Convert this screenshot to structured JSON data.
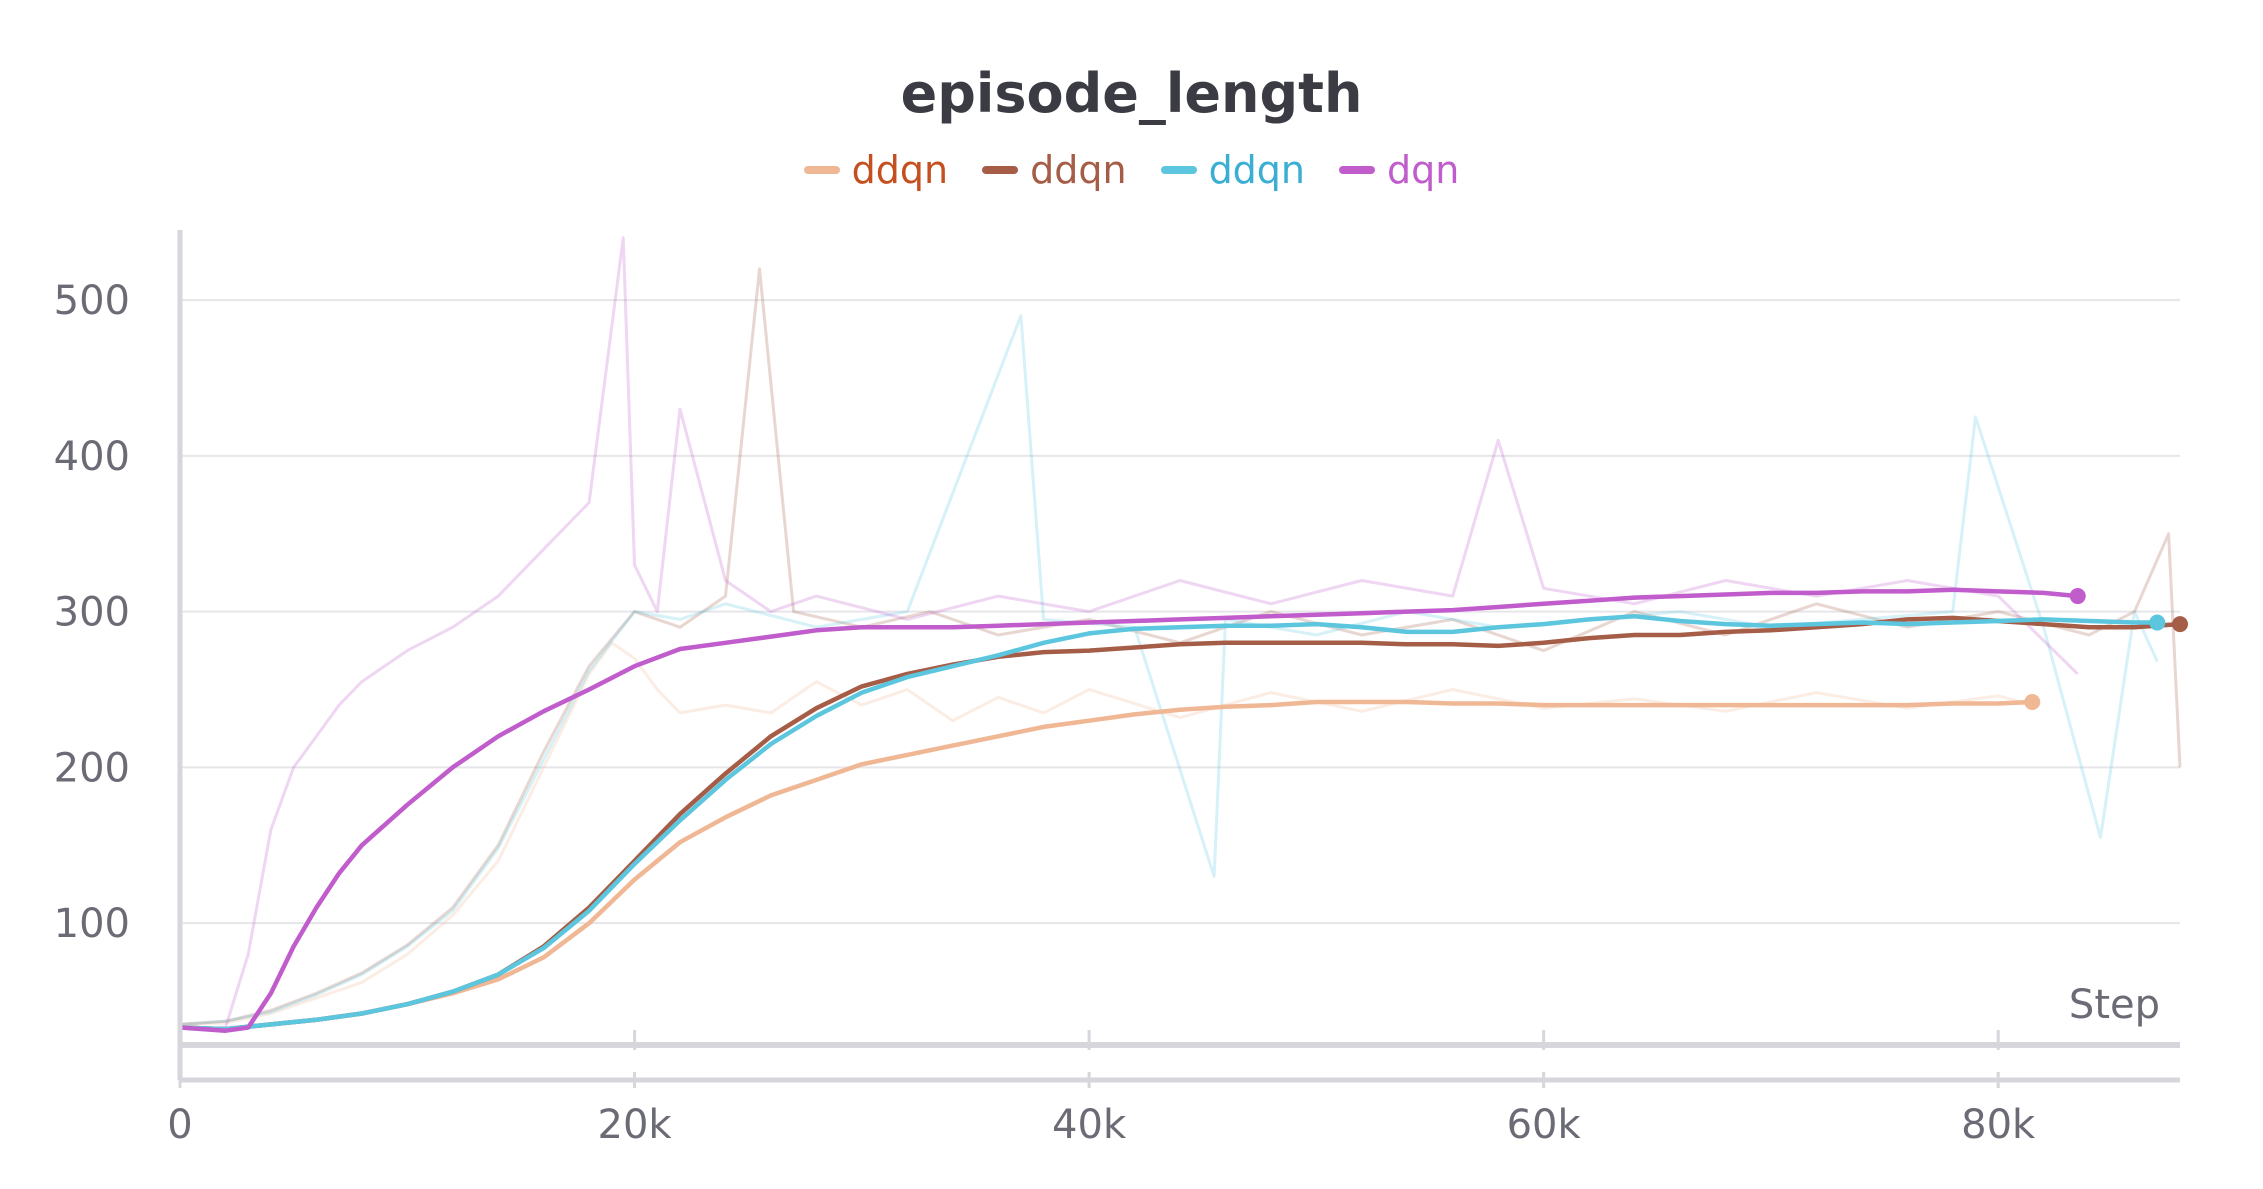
{
  "chart_data": {
    "type": "line",
    "title": "episode_length",
    "xlabel": "Step",
    "ylabel": "",
    "xlim": [
      0,
      88000
    ],
    "ylim": [
      25,
      545
    ],
    "x_ticks": [
      0,
      20000,
      40000,
      60000,
      80000
    ],
    "x_tick_labels": [
      "0",
      "20k",
      "40k",
      "60k",
      "80k"
    ],
    "y_ticks": [
      100,
      200,
      300,
      400,
      500
    ],
    "y_tick_labels": [
      "100",
      "200",
      "300",
      "400",
      "500"
    ],
    "grid": true,
    "legend_position": "top-center",
    "series": [
      {
        "name": "ddqn",
        "color": "#f0b795",
        "label_color": "#c4501f",
        "x": [
          0,
          2000,
          4000,
          6000,
          8000,
          10000,
          12000,
          14000,
          16000,
          18000,
          20000,
          22000,
          24000,
          26000,
          28000,
          30000,
          32000,
          34000,
          36000,
          38000,
          40000,
          42000,
          44000,
          46000,
          48000,
          50000,
          52000,
          54000,
          56000,
          58000,
          60000,
          62000,
          64000,
          66000,
          68000,
          70000,
          72000,
          74000,
          76000,
          78000,
          80000,
          81500
        ],
        "values": [
          33,
          32,
          35,
          38,
          42,
          48,
          55,
          64,
          78,
          100,
          128,
          152,
          168,
          182,
          192,
          202,
          208,
          214,
          220,
          226,
          230,
          234,
          237,
          239,
          240,
          242,
          242,
          242,
          241,
          241,
          240,
          240,
          240,
          240,
          240,
          240,
          240,
          240,
          240,
          241,
          241,
          242
        ]
      },
      {
        "name": "ddqn",
        "color": "#a55d47",
        "label_color": "#a55d47",
        "x": [
          0,
          2000,
          4000,
          6000,
          8000,
          10000,
          12000,
          14000,
          16000,
          18000,
          20000,
          22000,
          24000,
          26000,
          28000,
          30000,
          32000,
          34000,
          36000,
          38000,
          40000,
          42000,
          44000,
          46000,
          48000,
          50000,
          52000,
          54000,
          56000,
          58000,
          60000,
          62000,
          64000,
          66000,
          68000,
          70000,
          72000,
          74000,
          76000,
          78000,
          80000,
          82000,
          84000,
          86000,
          88000
        ],
        "values": [
          33,
          32,
          35,
          38,
          42,
          48,
          56,
          67,
          85,
          110,
          140,
          170,
          196,
          220,
          238,
          252,
          260,
          266,
          271,
          274,
          275,
          277,
          279,
          280,
          280,
          280,
          280,
          279,
          279,
          278,
          280,
          283,
          285,
          285,
          287,
          288,
          290,
          292,
          295,
          296,
          294,
          292,
          290,
          290,
          292
        ]
      },
      {
        "name": "ddqn",
        "color": "#5bc6de",
        "label_color": "#3aaed3",
        "x": [
          0,
          2000,
          4000,
          6000,
          8000,
          10000,
          12000,
          14000,
          16000,
          18000,
          20000,
          22000,
          24000,
          26000,
          28000,
          30000,
          32000,
          34000,
          36000,
          38000,
          40000,
          42000,
          44000,
          46000,
          48000,
          50000,
          52000,
          54000,
          56000,
          58000,
          60000,
          62000,
          64000,
          66000,
          68000,
          70000,
          72000,
          74000,
          76000,
          78000,
          80000,
          82000,
          84000,
          86000,
          87000
        ],
        "values": [
          33,
          32,
          35,
          38,
          42,
          48,
          56,
          67,
          84,
          108,
          138,
          166,
          192,
          215,
          233,
          248,
          258,
          265,
          272,
          280,
          286,
          289,
          290,
          291,
          291,
          292,
          290,
          287,
          287,
          290,
          292,
          295,
          297,
          294,
          292,
          291,
          292,
          293,
          292,
          293,
          294,
          295,
          294,
          293,
          293
        ]
      },
      {
        "name": "dqn",
        "color": "#c05ccb",
        "label_color": "#c05ccb",
        "x": [
          0,
          1000,
          2000,
          3000,
          4000,
          5000,
          6000,
          7000,
          8000,
          10000,
          12000,
          14000,
          16000,
          18000,
          20000,
          22000,
          24000,
          26000,
          28000,
          30000,
          32000,
          34000,
          36000,
          38000,
          40000,
          42000,
          44000,
          46000,
          48000,
          50000,
          52000,
          54000,
          56000,
          58000,
          60000,
          62000,
          64000,
          66000,
          68000,
          70000,
          72000,
          74000,
          76000,
          78000,
          80000,
          82000,
          83500
        ],
        "values": [
          33,
          32,
          31,
          33,
          55,
          85,
          110,
          132,
          150,
          176,
          200,
          220,
          236,
          250,
          265,
          276,
          280,
          284,
          288,
          290,
          290,
          290,
          291,
          292,
          293,
          294,
          295,
          296,
          297,
          298,
          299,
          300,
          301,
          303,
          305,
          307,
          309,
          310,
          311,
          312,
          312,
          313,
          313,
          314,
          313,
          312,
          310
        ]
      }
    ],
    "raw_series": [
      {
        "name": "ddqn",
        "color": "#f0b795",
        "x": [
          0,
          2000,
          4000,
          6000,
          8000,
          10000,
          12000,
          14000,
          16000,
          17000,
          18000,
          19000,
          20000,
          21000,
          22000,
          24000,
          26000,
          28000,
          30000,
          32000,
          34000,
          36000,
          38000,
          40000,
          44000,
          48000,
          52000,
          56000,
          60000,
          64000,
          68000,
          72000,
          76000,
          80000,
          81500
        ],
        "values": [
          35,
          36,
          42,
          52,
          62,
          80,
          105,
          140,
          200,
          230,
          260,
          280,
          270,
          250,
          235,
          240,
          235,
          255,
          240,
          250,
          230,
          245,
          235,
          250,
          232,
          248,
          236,
          250,
          238,
          244,
          236,
          248,
          238,
          246,
          240
        ]
      },
      {
        "name": "ddqn",
        "color": "#a55d47",
        "x": [
          0,
          2000,
          4000,
          6000,
          8000,
          10000,
          12000,
          14000,
          16000,
          18000,
          20000,
          22000,
          24000,
          25500,
          27000,
          30000,
          33000,
          36000,
          40000,
          44000,
          48000,
          52000,
          56000,
          60000,
          64000,
          68000,
          72000,
          76000,
          80000,
          84000,
          86000,
          87500,
          88000
        ],
        "values": [
          35,
          37,
          44,
          55,
          68,
          86,
          110,
          150,
          210,
          265,
          300,
          290,
          310,
          520,
          300,
          290,
          300,
          285,
          295,
          280,
          300,
          285,
          295,
          275,
          300,
          285,
          305,
          290,
          300,
          285,
          300,
          350,
          200
        ]
      },
      {
        "name": "ddqn",
        "color": "#5bc6de",
        "x": [
          0,
          2000,
          4000,
          6000,
          8000,
          10000,
          12000,
          14000,
          16000,
          18000,
          20000,
          22000,
          24000,
          28000,
          32000,
          37000,
          38000,
          42000,
          45500,
          46000,
          50000,
          54000,
          58000,
          62000,
          66000,
          70000,
          74000,
          78000,
          79000,
          82000,
          84500,
          86000,
          87000
        ],
        "values": [
          35,
          37,
          43,
          54,
          67,
          85,
          108,
          148,
          205,
          262,
          300,
          295,
          305,
          290,
          300,
          490,
          295,
          290,
          130,
          295,
          285,
          300,
          290,
          295,
          300,
          290,
          295,
          300,
          425,
          290,
          155,
          300,
          268
        ]
      },
      {
        "name": "dqn",
        "color": "#c05ccb",
        "x": [
          0,
          1000,
          2000,
          3000,
          4000,
          5000,
          6000,
          7000,
          8000,
          10000,
          12000,
          14000,
          16000,
          18000,
          19500,
          20000,
          21000,
          22000,
          24000,
          26000,
          28000,
          32000,
          36000,
          40000,
          44000,
          48000,
          52000,
          56000,
          58000,
          60000,
          64000,
          68000,
          72000,
          76000,
          80000,
          83500
        ],
        "values": [
          33,
          32,
          33,
          80,
          160,
          200,
          220,
          240,
          255,
          275,
          290,
          310,
          340,
          370,
          540,
          330,
          300,
          430,
          320,
          300,
          310,
          295,
          310,
          300,
          320,
          305,
          320,
          310,
          410,
          315,
          305,
          320,
          310,
          320,
          310,
          260
        ]
      }
    ]
  }
}
